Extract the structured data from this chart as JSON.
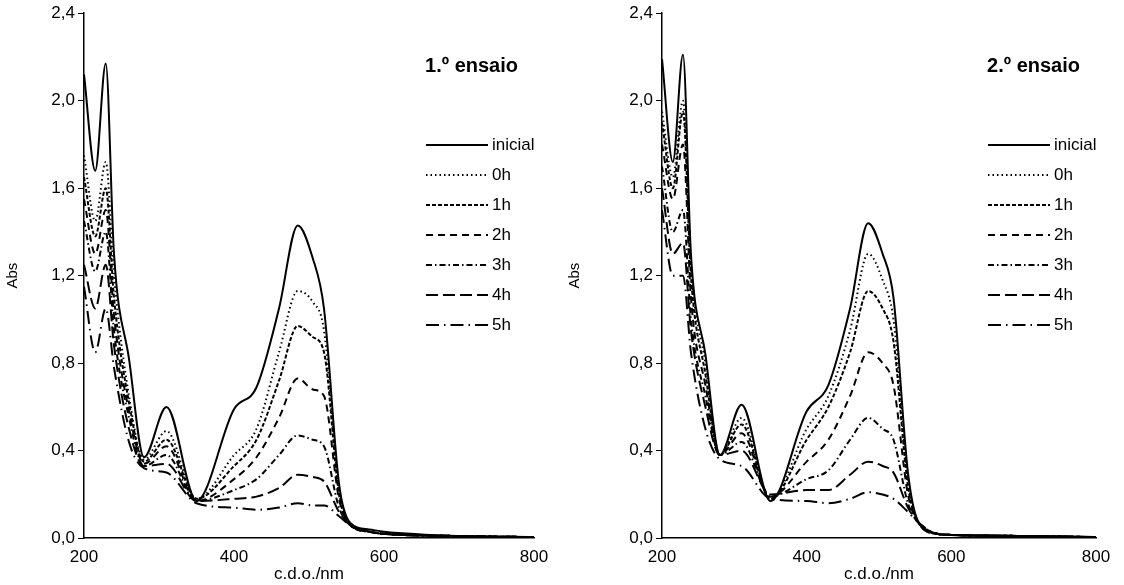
{
  "chart_data": [
    {
      "type": "line",
      "title": "1.º ensaio",
      "xlabel": "c.d.o./nm",
      "ylabel": "Abs",
      "legend": "right",
      "grid": false,
      "x": [
        200,
        215,
        229,
        240,
        260,
        280,
        310,
        350,
        400,
        430,
        460,
        485,
        505,
        520,
        540,
        555,
        580,
        600,
        700,
        800
      ],
      "xlim": [
        200,
        800
      ],
      "xticks": [
        200,
        400,
        600,
        800
      ],
      "ylim": [
        0,
        2.4
      ],
      "yticks": [
        {
          "value": 0,
          "label": "0,0"
        },
        {
          "value": 0.4,
          "label": "0,4"
        },
        {
          "value": 0.8,
          "label": "0,8"
        },
        {
          "value": 1.2,
          "label": "1,2"
        },
        {
          "value": 1.6,
          "label": "1,6"
        },
        {
          "value": 2.0,
          "label": "2,0"
        },
        {
          "value": 2.4,
          "label": "2,4"
        }
      ],
      "series": [
        {
          "name": "inicial",
          "color": "#000000",
          "line_style": "solid",
          "values": [
            2.12,
            1.68,
            2.17,
            1.3,
            0.82,
            0.37,
            0.6,
            0.17,
            0.59,
            0.69,
            1.05,
            1.43,
            1.28,
            1.05,
            0.25,
            0.07,
            0.04,
            0.03,
            0.01,
            0.005
          ]
        },
        {
          "name": "0h",
          "color": "#000000",
          "line_style": "dotted",
          "values": [
            1.75,
            1.45,
            1.72,
            1.2,
            0.65,
            0.36,
            0.49,
            0.18,
            0.38,
            0.5,
            0.85,
            1.13,
            1.08,
            0.95,
            0.22,
            0.06,
            0.03,
            0.02,
            0.01,
            0.005
          ]
        },
        {
          "name": "1h",
          "color": "#000000",
          "line_style": "dashed",
          "values": [
            1.65,
            1.38,
            1.6,
            1.1,
            0.62,
            0.35,
            0.45,
            0.18,
            0.33,
            0.45,
            0.72,
            0.97,
            0.92,
            0.85,
            0.2,
            0.06,
            0.03,
            0.02,
            0.01,
            0.005
          ]
        },
        {
          "name": "2h",
          "color": "#000000",
          "line_style": "dashed",
          "values": [
            1.55,
            1.3,
            1.5,
            1.02,
            0.58,
            0.34,
            0.42,
            0.17,
            0.27,
            0.37,
            0.55,
            0.73,
            0.68,
            0.65,
            0.18,
            0.06,
            0.03,
            0.02,
            0.01,
            0.005
          ]
        },
        {
          "name": "3h",
          "color": "#000000",
          "line_style": "dashed",
          "values": [
            1.45,
            1.22,
            1.4,
            0.95,
            0.55,
            0.33,
            0.38,
            0.17,
            0.22,
            0.27,
            0.38,
            0.47,
            0.45,
            0.42,
            0.14,
            0.06,
            0.03,
            0.02,
            0.01,
            0.005
          ]
        },
        {
          "name": "4h",
          "color": "#000000",
          "line_style": "dashed",
          "values": [
            1.25,
            1.05,
            1.25,
            0.88,
            0.5,
            0.33,
            0.34,
            0.17,
            0.18,
            0.19,
            0.23,
            0.29,
            0.28,
            0.26,
            0.12,
            0.06,
            0.03,
            0.02,
            0.01,
            0.005
          ]
        },
        {
          "name": "5h",
          "color": "#000000",
          "line_style": "dashed",
          "values": [
            1.15,
            0.85,
            1.05,
            0.78,
            0.44,
            0.32,
            0.3,
            0.16,
            0.14,
            0.13,
            0.14,
            0.16,
            0.15,
            0.15,
            0.1,
            0.06,
            0.03,
            0.02,
            0.01,
            0.005
          ]
        }
      ]
    },
    {
      "type": "line",
      "title": "2.º ensaio",
      "xlabel": "c.d.o./nm",
      "ylabel": "Abs",
      "legend": "right",
      "grid": false,
      "x": [
        200,
        215,
        229,
        240,
        260,
        280,
        310,
        350,
        400,
        430,
        460,
        485,
        505,
        520,
        540,
        555,
        580,
        600,
        700,
        800
      ],
      "xlim": [
        200,
        800
      ],
      "xticks": [
        200,
        400,
        600,
        800
      ],
      "ylim": [
        0,
        2.4
      ],
      "yticks": [
        {
          "value": 0,
          "label": "0,0"
        },
        {
          "value": 0.4,
          "label": "0,4"
        },
        {
          "value": 0.8,
          "label": "0,8"
        },
        {
          "value": 1.2,
          "label": "1,2"
        },
        {
          "value": 1.6,
          "label": "1,6"
        },
        {
          "value": 2.0,
          "label": "2,0"
        },
        {
          "value": 2.4,
          "label": "2,4"
        }
      ],
      "series": [
        {
          "name": "inicial",
          "color": "#000000",
          "line_style": "solid",
          "values": [
            2.19,
            1.72,
            2.21,
            1.3,
            0.84,
            0.38,
            0.61,
            0.17,
            0.58,
            0.7,
            1.05,
            1.44,
            1.3,
            1.1,
            0.3,
            0.07,
            0.02,
            0.015,
            0.01,
            0.005
          ]
        },
        {
          "name": "0h",
          "color": "#000000",
          "line_style": "dotted",
          "values": [
            1.95,
            1.65,
            2.0,
            1.25,
            0.8,
            0.38,
            0.55,
            0.18,
            0.5,
            0.65,
            0.95,
            1.3,
            1.18,
            1.0,
            0.27,
            0.07,
            0.02,
            0.015,
            0.01,
            0.005
          ]
        },
        {
          "name": "1h",
          "color": "#000000",
          "line_style": "dashed",
          "values": [
            1.9,
            1.6,
            1.95,
            1.2,
            0.75,
            0.38,
            0.52,
            0.18,
            0.45,
            0.6,
            0.85,
            1.13,
            1.05,
            0.9,
            0.24,
            0.07,
            0.02,
            0.015,
            0.01,
            0.005
          ]
        },
        {
          "name": "2h",
          "color": "#000000",
          "line_style": "dashed",
          "values": [
            1.8,
            1.55,
            1.8,
            1.1,
            0.7,
            0.38,
            0.48,
            0.19,
            0.35,
            0.45,
            0.65,
            0.85,
            0.8,
            0.7,
            0.2,
            0.07,
            0.02,
            0.015,
            0.01,
            0.005
          ]
        },
        {
          "name": "3h",
          "color": "#000000",
          "line_style": "dashed",
          "values": [
            1.7,
            1.4,
            1.5,
            1.0,
            0.65,
            0.38,
            0.44,
            0.19,
            0.27,
            0.31,
            0.45,
            0.55,
            0.5,
            0.45,
            0.16,
            0.07,
            0.02,
            0.015,
            0.01,
            0.005
          ]
        },
        {
          "name": "4h",
          "color": "#000000",
          "line_style": "dashed",
          "values": [
            1.6,
            1.3,
            1.35,
            0.95,
            0.6,
            0.38,
            0.4,
            0.2,
            0.22,
            0.22,
            0.29,
            0.35,
            0.33,
            0.3,
            0.14,
            0.07,
            0.02,
            0.015,
            0.01,
            0.005
          ]
        },
        {
          "name": "5h",
          "color": "#000000",
          "line_style": "dashed",
          "values": [
            1.5,
            1.2,
            1.2,
            0.85,
            0.5,
            0.36,
            0.33,
            0.18,
            0.17,
            0.16,
            0.18,
            0.21,
            0.2,
            0.18,
            0.12,
            0.07,
            0.02,
            0.015,
            0.01,
            0.005
          ]
        }
      ]
    }
  ]
}
